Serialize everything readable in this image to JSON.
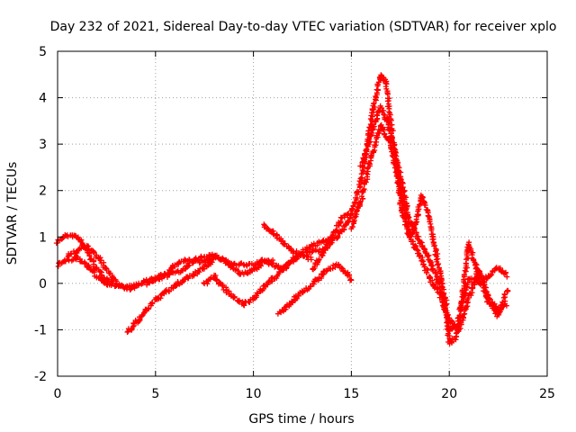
{
  "chart_data": {
    "type": "scatter",
    "title": "Day 232 of 2021, Sidereal Day-to-day VTEC variation (SDTVAR) for receiver xplo",
    "xlabel": "GPS time / hours",
    "ylabel": "SDTVAR / TECUs",
    "xlim": [
      0,
      25
    ],
    "ylim": [
      -2,
      5
    ],
    "x_ticks": [
      "0",
      "5",
      "10",
      "15",
      "20",
      "25"
    ],
    "y_ticks": [
      "-2",
      "-1",
      "0",
      "1",
      "2",
      "3",
      "4",
      "5"
    ],
    "grid": true,
    "legend": "none",
    "marker": "+",
    "series": [
      {
        "name": "SDTVAR",
        "color": "#ff0000",
        "segments": [
          {
            "x": [
              0.0,
              0.3,
              0.6,
              1.0,
              1.5,
              2.0,
              2.5,
              3.0,
              3.5,
              4.0
            ],
            "y": [
              0.9,
              1.0,
              1.05,
              1.0,
              0.7,
              0.3,
              0.1,
              0.0,
              -0.1,
              -0.1
            ]
          },
          {
            "x": [
              0.0,
              0.5,
              1.0,
              1.5,
              2.0,
              2.5,
              3.0,
              3.5,
              4.0,
              4.5,
              5.0,
              5.5,
              6.0,
              6.5,
              7.0,
              7.5,
              8.0,
              8.5,
              9.0,
              9.5,
              10.0,
              10.5,
              11.0,
              11.5,
              12.0,
              12.5,
              13.0,
              13.5,
              14.0,
              14.5,
              15.0
            ],
            "y": [
              0.4,
              0.5,
              0.55,
              0.4,
              0.15,
              0.0,
              -0.05,
              -0.1,
              -0.05,
              0.05,
              0.1,
              0.15,
              0.25,
              0.3,
              0.5,
              0.6,
              0.6,
              0.5,
              0.4,
              0.4,
              0.4,
              0.5,
              0.4,
              0.3,
              0.5,
              0.6,
              0.7,
              0.7,
              0.9,
              1.1,
              1.5
            ]
          },
          {
            "x": [
              0.5,
              1.0,
              1.5,
              2.0,
              2.5,
              3.0
            ],
            "y": [
              0.6,
              0.7,
              0.8,
              0.6,
              0.3,
              0.05
            ]
          },
          {
            "x": [
              3.6,
              4.0,
              4.5,
              5.0,
              5.5,
              6.0,
              6.5,
              7.0,
              7.5,
              8.0
            ],
            "y": [
              -1.05,
              -0.85,
              -0.6,
              -0.35,
              -0.2,
              -0.05,
              0.1,
              0.2,
              0.35,
              0.5
            ]
          },
          {
            "x": [
              4.5,
              5.0,
              5.5,
              6.0,
              6.5,
              7.0,
              7.5,
              8.0,
              8.5,
              9.0,
              9.5,
              10.0,
              10.5,
              11.0
            ],
            "y": [
              0.0,
              0.1,
              0.2,
              0.4,
              0.5,
              0.5,
              0.45,
              0.6,
              0.5,
              0.3,
              0.2,
              0.3,
              0.45,
              0.5
            ]
          },
          {
            "x": [
              7.5,
              8.0,
              8.5,
              9.0,
              9.5,
              10.0,
              10.5,
              11.0,
              11.5,
              12.0,
              12.5,
              13.0,
              13.5,
              14.0
            ],
            "y": [
              0.0,
              0.15,
              -0.1,
              -0.3,
              -0.45,
              -0.35,
              -0.1,
              0.1,
              0.3,
              0.5,
              0.7,
              0.8,
              0.9,
              0.95
            ]
          },
          {
            "x": [
              10.5,
              11.0,
              11.5,
              12.0,
              12.5,
              13.0
            ],
            "y": [
              1.25,
              1.1,
              0.9,
              0.7,
              0.6,
              0.5
            ]
          },
          {
            "x": [
              11.3,
              11.8,
              12.3,
              12.8,
              13.3,
              13.8,
              14.3,
              14.8,
              15.0
            ],
            "y": [
              -0.65,
              -0.45,
              -0.25,
              -0.1,
              0.1,
              0.3,
              0.4,
              0.2,
              0.05
            ]
          },
          {
            "x": [
              13.0,
              13.5,
              14.0,
              14.5,
              15.0,
              15.5,
              16.0,
              16.3,
              16.5,
              16.8,
              17.0,
              17.3,
              17.6,
              18.0,
              18.3,
              18.6,
              19.0,
              19.4,
              19.8,
              20.0,
              20.3,
              20.6,
              21.0,
              21.5,
              22.0,
              22.5,
              23.0
            ],
            "y": [
              0.3,
              0.6,
              1.0,
              1.4,
              1.5,
              2.2,
              3.5,
              4.1,
              4.5,
              4.3,
              3.5,
              2.5,
              1.5,
              1.0,
              1.3,
              1.9,
              1.4,
              0.5,
              -0.4,
              -1.3,
              -1.2,
              -0.5,
              0.1,
              0.0,
              0.15,
              0.35,
              0.15
            ]
          },
          {
            "x": [
              15.0,
              15.5,
              16.0,
              16.5,
              17.0,
              17.5,
              18.0,
              18.5,
              19.0,
              19.5,
              20.0,
              20.5,
              21.0,
              21.5,
              22.0,
              22.5,
              23.0
            ],
            "y": [
              1.2,
              1.8,
              2.7,
              3.4,
              3.0,
              2.0,
              1.0,
              0.6,
              0.1,
              -0.2,
              -0.8,
              -1.0,
              -0.3,
              0.3,
              -0.3,
              -0.55,
              -0.45
            ]
          },
          {
            "x": [
              15.5,
              16.0,
              16.5,
              17.0,
              17.5,
              18.0,
              18.5,
              19.0,
              19.5,
              20.0,
              20.5,
              21.0,
              21.5,
              22.0,
              22.5,
              23.0
            ],
            "y": [
              2.5,
              3.2,
              3.8,
              3.3,
              2.3,
              1.3,
              0.9,
              0.5,
              0.0,
              -1.0,
              -0.9,
              0.85,
              0.2,
              -0.4,
              -0.7,
              -0.1
            ]
          }
        ]
      }
    ]
  }
}
